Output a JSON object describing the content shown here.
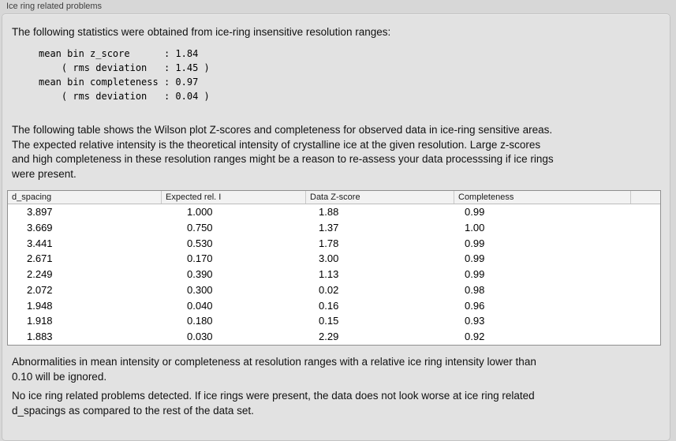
{
  "window": {
    "title": "Ice ring related problems"
  },
  "stats": {
    "intro": "The following statistics were obtained from ice-ring insensitive resolution ranges:",
    "lines": [
      "mean bin z_score      : 1.84",
      "    ( rms deviation   : 1.45 )",
      "mean bin completeness : 0.97",
      "    ( rms deviation   : 0.04 )"
    ],
    "mean_bin_z_score": "1.84",
    "z_score_rms_deviation": "1.45",
    "mean_bin_completeness": "0.97",
    "completeness_rms_deviation": "0.04"
  },
  "table_intro_lines": [
    "The following table shows the Wilson plot Z-scores and completeness for observed data in ice-ring sensitive areas.",
    "The expected relative intensity is the theoretical intensity of crystalline ice at the given resolution. Large z-scores",
    "and high completeness in these resolution ranges might be a reason to re-assess your data processsing if ice rings",
    "were present."
  ],
  "table": {
    "columns": [
      "d_spacing",
      "Expected rel. I",
      "Data Z-score",
      "Completeness"
    ],
    "rows": [
      [
        "3.897",
        "1.000",
        "1.88",
        "0.99"
      ],
      [
        "3.669",
        "0.750",
        "1.37",
        "1.00"
      ],
      [
        "3.441",
        "0.530",
        "1.78",
        "0.99"
      ],
      [
        "2.671",
        "0.170",
        "3.00",
        "0.99"
      ],
      [
        "2.249",
        "0.390",
        "1.13",
        "0.99"
      ],
      [
        "2.072",
        "0.300",
        "0.02",
        "0.98"
      ],
      [
        "1.948",
        "0.040",
        "0.16",
        "0.96"
      ],
      [
        "1.918",
        "0.180",
        "0.15",
        "0.93"
      ],
      [
        "1.883",
        "0.030",
        "2.29",
        "0.92"
      ]
    ]
  },
  "notes": {
    "ignore_note_lines": [
      "Abnormalities in mean intensity or completeness at resolution ranges with a relative ice ring intensity lower than",
      "0.10 will be ignored."
    ],
    "conclusion_lines": [
      "No ice ring related problems detected. If ice rings were present, the data does not look worse at ice ring related",
      "d_spacings as compared to the rest of the data set."
    ]
  },
  "colors": {
    "page_bg": "#d7d7d7",
    "panel_bg": "#e2e2e2",
    "panel_border": "#c3c3c3",
    "table_border": "#8f8f8f",
    "table_header_bg": "#f2f2f2",
    "row_bg": "#ffffff",
    "text": "#111111",
    "label_text": "#3f3f3f"
  }
}
